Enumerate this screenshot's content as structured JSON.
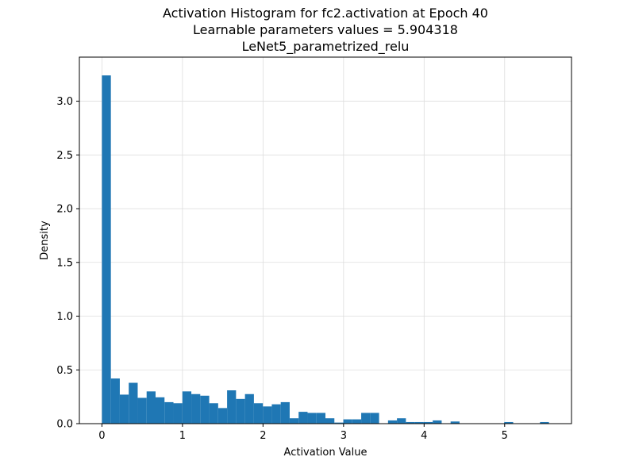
{
  "chart_data": {
    "type": "bar",
    "title_lines": [
      "Activation Histogram for fc2.activation at Epoch 40",
      "Learnable parameters values = 5.904318",
      "LeNet5_parametrized_relu"
    ],
    "xlabel": "Activation Value",
    "ylabel": "Density",
    "xlim": [
      -0.28,
      5.83
    ],
    "ylim": [
      0,
      3.41
    ],
    "xticks": [
      0,
      1,
      2,
      3,
      4,
      5
    ],
    "xtick_labels": [
      "0",
      "1",
      "2",
      "3",
      "4",
      "5"
    ],
    "yticks": [
      0.0,
      0.5,
      1.0,
      1.5,
      2.0,
      2.5,
      3.0
    ],
    "ytick_labels": [
      "0.0",
      "0.5",
      "1.0",
      "1.5",
      "2.0",
      "2.5",
      "3.0"
    ],
    "grid": true,
    "bar_color": "#1f77b4",
    "bin_start": 0.0,
    "bin_width": 0.111,
    "values": [
      3.24,
      0.42,
      0.27,
      0.38,
      0.24,
      0.3,
      0.245,
      0.2,
      0.19,
      0.3,
      0.275,
      0.26,
      0.19,
      0.145,
      0.31,
      0.23,
      0.275,
      0.19,
      0.16,
      0.18,
      0.2,
      0.05,
      0.11,
      0.1,
      0.1,
      0.05,
      0.01,
      0.04,
      0.04,
      0.1,
      0.1,
      0.0,
      0.03,
      0.05,
      0.015,
      0.015,
      0.015,
      0.03,
      0.0,
      0.02,
      0.0,
      0.0,
      0.0,
      0.0,
      0.0,
      0.015,
      0.0,
      0.0,
      0.0,
      0.015
    ]
  }
}
